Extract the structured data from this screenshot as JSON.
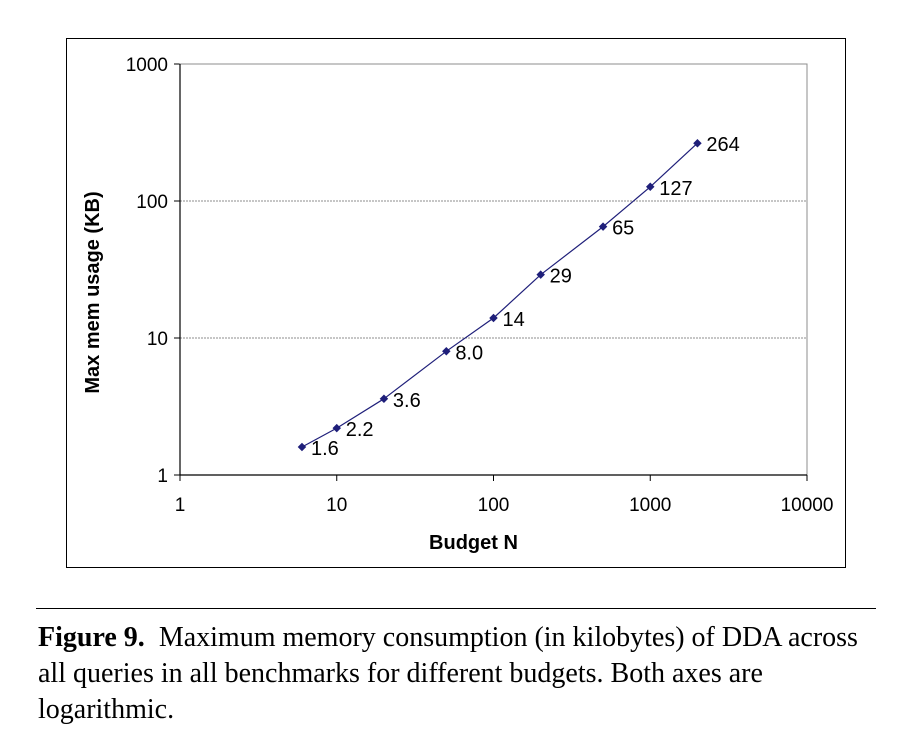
{
  "chart_data": {
    "type": "line",
    "x": [
      6,
      10,
      20,
      50,
      100,
      200,
      500,
      1000,
      2000
    ],
    "y": [
      1.6,
      2.2,
      3.6,
      8.0,
      14,
      29,
      65,
      127,
      264
    ],
    "data_labels": [
      "1.6",
      "2.2",
      "3.6",
      "8.0",
      "14",
      "29",
      "65",
      "127",
      "264"
    ],
    "xlabel": "Budget N",
    "ylabel": "Max mem usage (KB)",
    "x_scale": "log",
    "y_scale": "log",
    "xlim": [
      1,
      10000
    ],
    "ylim": [
      1,
      1000
    ],
    "x_ticks": [
      "1",
      "10",
      "100",
      "1000",
      "10000"
    ],
    "y_ticks": [
      "1",
      "10",
      "100",
      "1000"
    ],
    "grid": "horizontal-major",
    "series_color": "#1f1f7a"
  },
  "caption": {
    "label": "Figure 9.",
    "text": "Maximum memory consumption (in kilobytes) of DDA across all queries in all benchmarks for different budgets. Both axes are logarithmic."
  }
}
